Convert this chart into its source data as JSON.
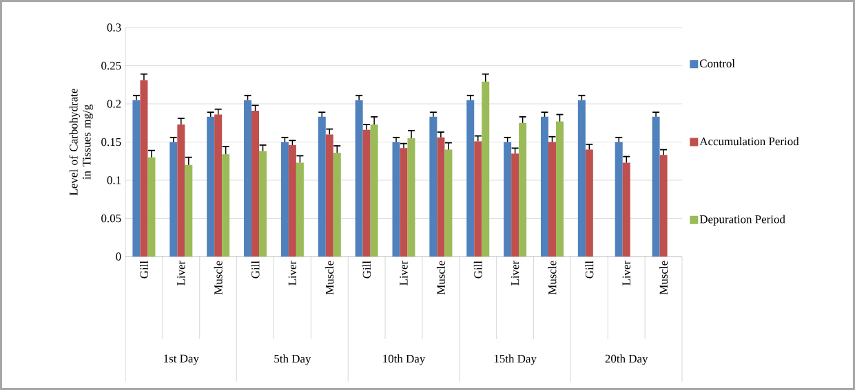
{
  "chart_data": {
    "type": "bar",
    "ylabel": "Level of Carbohydrate in Tissues mg/g",
    "categories": [
      "Gill",
      "Liver",
      "Muscle",
      "Gill",
      "Liver",
      "Muscle",
      "Gill",
      "Liver",
      "Muscle",
      "Gill",
      "Liver",
      "Muscle",
      "Gill",
      "Liver",
      "Muscle"
    ],
    "annotations": [
      "1st Day",
      "5th Day",
      "10th Day",
      "15th Day",
      "20th Day"
    ],
    "series": [
      {
        "name": "Control",
        "color": "#4f81bd",
        "values": [
          0.205,
          0.15,
          0.183,
          0.205,
          0.15,
          0.183,
          0.205,
          0.15,
          0.183,
          0.205,
          0.15,
          0.183,
          0.205,
          0.15,
          0.183
        ],
        "errors": [
          [
            0.205,
            0.211
          ],
          [
            0.15,
            0.156
          ],
          [
            0.183,
            0.189
          ],
          [
            0.205,
            0.211
          ],
          [
            0.15,
            0.156
          ],
          [
            0.183,
            0.189
          ],
          [
            0.205,
            0.211
          ],
          [
            0.15,
            0.156
          ],
          [
            0.183,
            0.189
          ],
          [
            0.205,
            0.211
          ],
          [
            0.15,
            0.156
          ],
          [
            0.183,
            0.189
          ],
          [
            0.205,
            0.211
          ],
          [
            0.15,
            0.156
          ],
          [
            0.183,
            0.189
          ]
        ]
      },
      {
        "name": "Accumulation Period",
        "color": "#c0504d",
        "values": [
          0.231,
          0.173,
          0.186,
          0.191,
          0.146,
          0.16,
          0.166,
          0.142,
          0.156,
          0.151,
          0.135,
          0.15,
          0.14,
          0.123,
          0.133
        ],
        "errors": [
          [
            0.231,
            0.239
          ],
          [
            0.173,
            0.181
          ],
          [
            0.186,
            0.193
          ],
          [
            0.191,
            0.198
          ],
          [
            0.146,
            0.152
          ],
          [
            0.16,
            0.167
          ],
          [
            0.166,
            0.173
          ],
          [
            0.142,
            0.148
          ],
          [
            0.156,
            0.163
          ],
          [
            0.151,
            0.158
          ],
          [
            0.135,
            0.142
          ],
          [
            0.15,
            0.157
          ],
          [
            0.14,
            0.147
          ],
          [
            0.123,
            0.131
          ],
          [
            0.133,
            0.14
          ]
        ]
      },
      {
        "name": "Depuration Period",
        "color": "#9bbb59",
        "values": [
          0.13,
          0.12,
          0.134,
          0.138,
          0.123,
          0.136,
          0.173,
          0.155,
          0.14,
          0.229,
          0.175,
          0.177,
          null,
          null,
          null
        ],
        "errors": [
          [
            0.13,
            0.139
          ],
          [
            0.12,
            0.13
          ],
          [
            0.134,
            0.144
          ],
          [
            0.138,
            0.146
          ],
          [
            0.123,
            0.132
          ],
          [
            0.136,
            0.145
          ],
          [
            0.173,
            0.183
          ],
          [
            0.155,
            0.165
          ],
          [
            0.14,
            0.149
          ],
          [
            0.229,
            0.239
          ],
          [
            0.175,
            0.183
          ],
          [
            0.177,
            0.186
          ],
          null,
          null,
          null
        ]
      }
    ],
    "ylim": [
      0,
      0.3
    ],
    "yticks": [
      0,
      0.05,
      0.1,
      0.15,
      0.2,
      0.25,
      0.3
    ],
    "grid": "y",
    "legend": "right"
  }
}
